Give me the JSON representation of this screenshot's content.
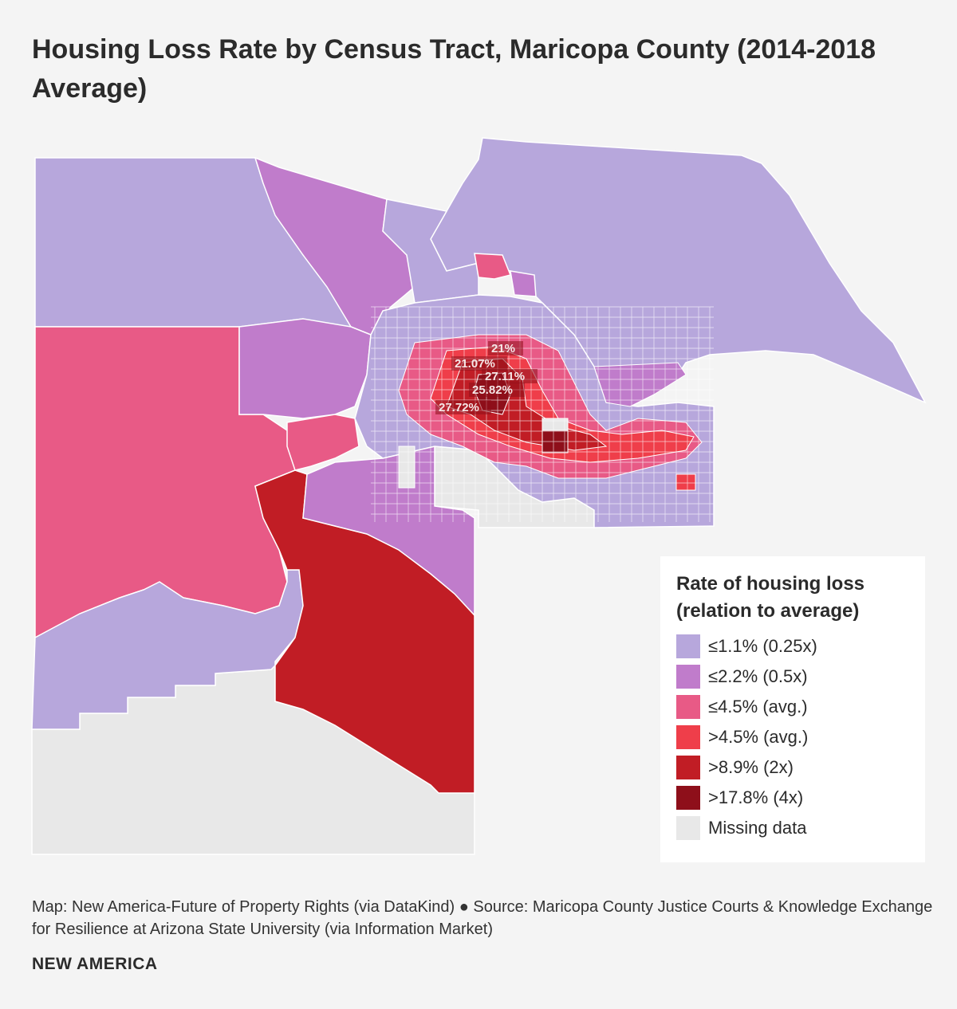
{
  "title": "Housing Loss Rate by Census Tract, Maricopa County (2014-2018 Average)",
  "legend": {
    "title": "Rate of housing loss (relation to average)",
    "items": [
      {
        "label": "≤1.1% (0.25x)",
        "color": "#b7a7dc"
      },
      {
        "label": "≤2.2% (0.5x)",
        "color": "#c07ccb"
      },
      {
        "label": "≤4.5% (avg.)",
        "color": "#e85a86"
      },
      {
        "label": ">4.5% (avg.)",
        "color": "#ef3e4a"
      },
      {
        "label": ">8.9% (2x)",
        "color": "#c11d25"
      },
      {
        "label": ">17.8% (4x)",
        "color": "#8e0f1a"
      },
      {
        "label": "Missing data",
        "color": "#e8e8e8"
      }
    ]
  },
  "callouts": [
    "21%",
    "21.07%",
    "27.11%",
    "25.82%",
    "27.72%"
  ],
  "source": "Map: New America-Future of Property Rights (via DataKind) ● Source: Maricopa County Justice Courts & Knowledge Exchange for Resilience at Arizona State University (via Information Market)",
  "brand": "NEW AMERICA"
}
